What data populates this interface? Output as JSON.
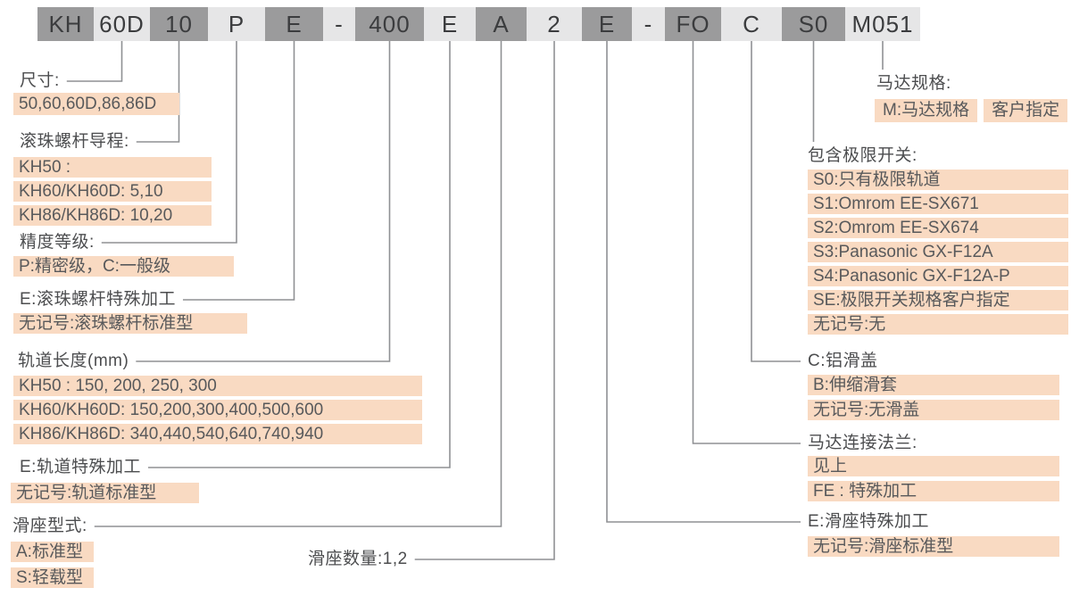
{
  "code": {
    "segments": [
      {
        "text": "KH",
        "tone": "dark"
      },
      {
        "text": "60D",
        "tone": "light"
      },
      {
        "text": "10",
        "tone": "dark"
      },
      {
        "text": "P",
        "tone": "light"
      },
      {
        "text": "E",
        "tone": "dark"
      },
      {
        "text": "-",
        "tone": "light"
      },
      {
        "text": "400",
        "tone": "dark"
      },
      {
        "text": "E",
        "tone": "light"
      },
      {
        "text": "A",
        "tone": "dark"
      },
      {
        "text": "2",
        "tone": "light"
      },
      {
        "text": "E",
        "tone": "dark"
      },
      {
        "text": "-",
        "tone": "light"
      },
      {
        "text": "FO",
        "tone": "dark"
      },
      {
        "text": "C",
        "tone": "light"
      },
      {
        "text": "S0",
        "tone": "dark"
      },
      {
        "text": "M051",
        "tone": "light"
      }
    ]
  },
  "sections": {
    "size": {
      "label": "尺寸:",
      "rows": [
        "50,60,60D,86,86D"
      ]
    },
    "lead": {
      "label": "滚珠螺杆导程:",
      "rows": [
        "KH50 :",
        "KH60/KH60D: 5,10",
        "KH86/KH86D: 10,20"
      ]
    },
    "precision": {
      "label": "精度等级:",
      "rows": [
        "P:精密级，C:一般级"
      ]
    },
    "ballscrew_e": {
      "label": "E:滚珠螺杆特殊加工",
      "rows": [
        "无记号:滚珠螺杆标准型"
      ]
    },
    "rail_length": {
      "label": "轨道长度(mm)",
      "rows": [
        "KH50 : 150, 200, 250, 300",
        "KH60/KH60D: 150,200,300,400,500,600",
        "KH86/KH86D: 340,440,540,640,740,940"
      ]
    },
    "rail_e": {
      "label": "E:轨道特殊加工",
      "rows": [
        "无记号:轨道标准型"
      ]
    },
    "slider_type": {
      "label": "滑座型式:",
      "rows": [
        "A:标准型",
        "S:轻载型"
      ]
    },
    "slider_qty": {
      "label": "滑座数量:1,2"
    },
    "motor": {
      "label": "马达规格:",
      "rows": [
        "M:马达规格",
        "客户指定"
      ]
    },
    "limit_switch": {
      "label": "包含极限开关:",
      "rows": [
        "S0:只有极限轨道",
        "S1:Omrom EE-SX671",
        "S2:Omrom EE-SX674",
        "S3:Panasonic GX-F12A",
        "S4:Panasonic GX-F12A-P",
        "SE:极限开关规格客户指定",
        "无记号:无"
      ]
    },
    "cover": {
      "label": "C:铝滑盖",
      "rows": [
        "B:伸缩滑套",
        "无记号:无滑盖"
      ]
    },
    "flange": {
      "label": "马达连接法兰:",
      "rows": [
        "见上",
        "FE : 特殊加工"
      ]
    },
    "slider_e": {
      "label": "E:滑座特殊加工",
      "rows": [
        "无记号:滑座标准型"
      ]
    }
  },
  "connectors": [
    {
      "seg": 1,
      "to": "size",
      "style": "elbow-left"
    },
    {
      "seg": 2,
      "to": "lead",
      "style": "elbow-left"
    },
    {
      "seg": 3,
      "to": "precision",
      "style": "elbow-left"
    },
    {
      "seg": 4,
      "to": "ballscrew_e",
      "style": "elbow-left"
    },
    {
      "seg": 6,
      "to": "rail_length",
      "style": "elbow-left"
    },
    {
      "seg": 7,
      "to": "rail_e",
      "style": "elbow-left"
    },
    {
      "seg": 8,
      "to": "slider_type",
      "style": "elbow-left"
    },
    {
      "seg": 9,
      "to": "slider_qty",
      "style": "elbow-left"
    },
    {
      "seg": 10,
      "to": "slider_e",
      "style": "elbow-right"
    },
    {
      "seg": 12,
      "to": "flange",
      "style": "elbow-right"
    },
    {
      "seg": 13,
      "to": "cover",
      "style": "elbow-right"
    },
    {
      "seg": 14,
      "to": "limit_switch",
      "style": "drop"
    },
    {
      "seg": 15,
      "to": "motor",
      "style": "drop"
    }
  ],
  "colors": {
    "highlight": "#f9dac2",
    "box_dark": "#9b9b9c",
    "box_light": "#e6e6e7",
    "wire": "#8f9194",
    "text": "#58595b"
  }
}
